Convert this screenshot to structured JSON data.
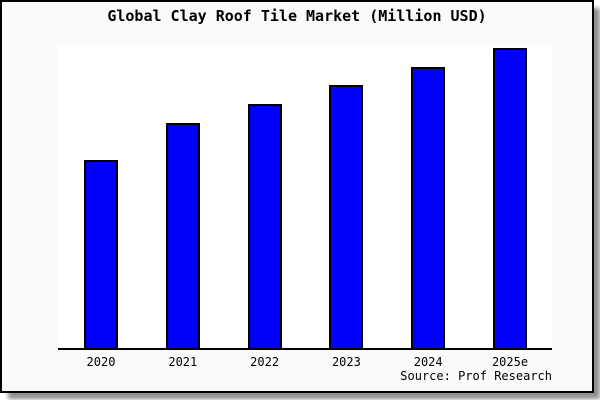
{
  "window": {
    "background": "#ffffff",
    "frame_background": "#fafafa",
    "frame_border_color": "#000000",
    "shadow_color": "#909090"
  },
  "chart_data": {
    "type": "bar",
    "title": "Global Clay Roof Tile Market (Million USD)",
    "categories": [
      "2020",
      "2021",
      "2022",
      "2023",
      "2024",
      "2025e"
    ],
    "values": [
      188,
      225,
      244,
      263,
      281,
      300
    ],
    "values_unit": "relative bar height px (chart displays no y-axis, gridlines or data labels)",
    "ylim": [
      0,
      303
    ],
    "xlabel": "",
    "ylabel": "",
    "grid": "off",
    "legend": "none",
    "bar_color": "#0101fb",
    "bar_border_color": "#000000",
    "axis_color": "#000000",
    "plot_background": "#ffffff",
    "source_label": "Source: Prof Research"
  }
}
